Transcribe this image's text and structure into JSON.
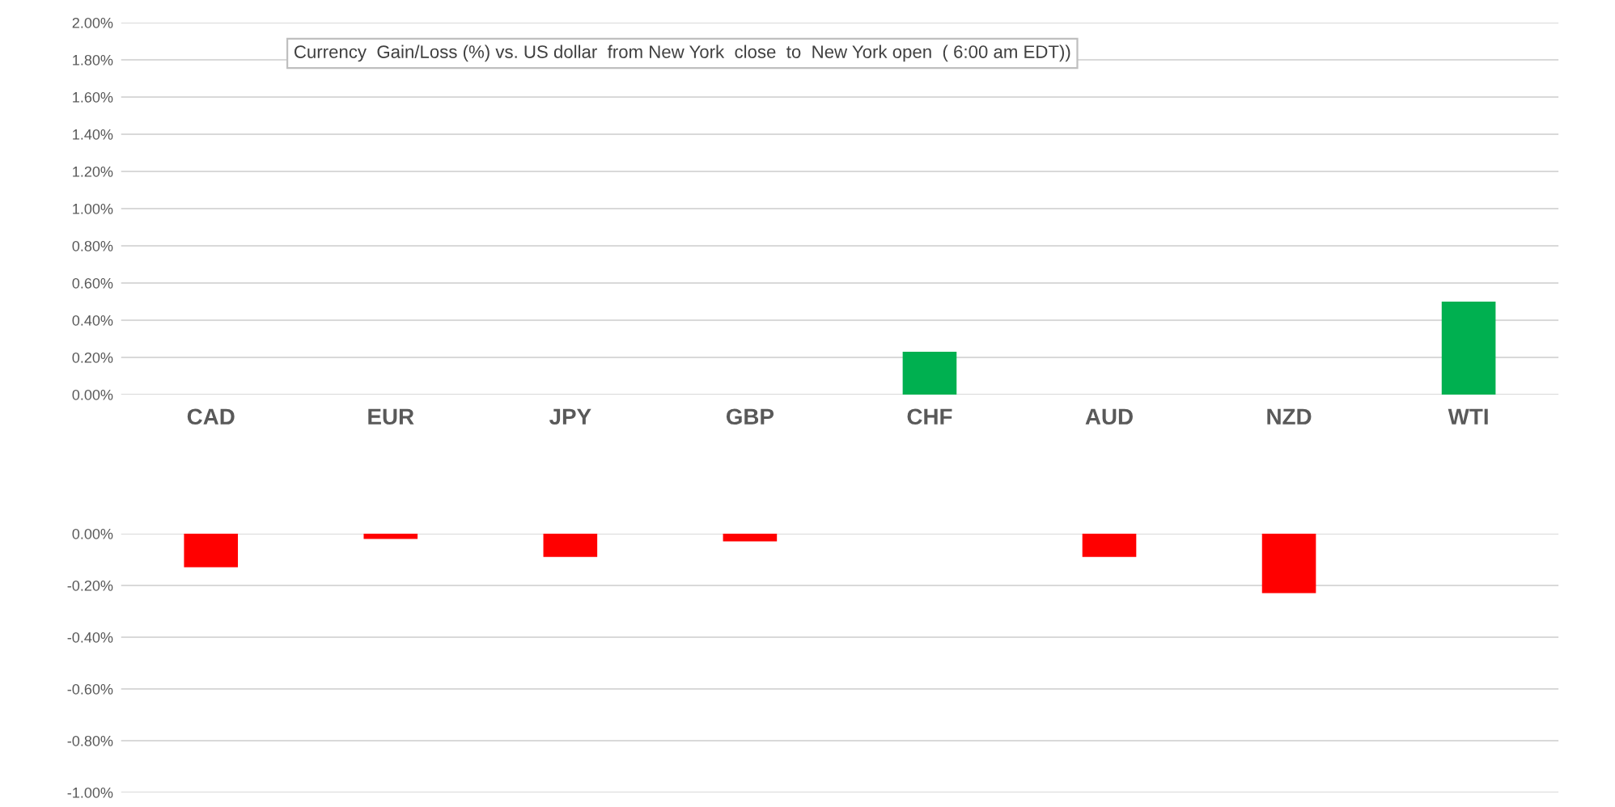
{
  "chart_data": [
    {
      "type": "bar",
      "categories": [
        "CAD",
        "EUR",
        "JPY",
        "GBP",
        "CHF",
        "AUD",
        "NZD",
        "WTI"
      ],
      "series": [
        {
          "color": "#00b050",
          "values": [
            null,
            null,
            null,
            null,
            0.23,
            null,
            null,
            0.5
          ]
        }
      ],
      "ylim": [
        0,
        2
      ],
      "yticks": [
        {
          "value": 0,
          "label": "0.00%"
        },
        {
          "value": 0.2,
          "label": "0.20%"
        },
        {
          "value": 0.4,
          "label": "0.40%"
        },
        {
          "value": 0.6,
          "label": "0.60%"
        },
        {
          "value": 0.8,
          "label": "0.80%"
        },
        {
          "value": 1.0,
          "label": "1.00%"
        },
        {
          "value": 1.2,
          "label": "1.20%"
        },
        {
          "value": 1.4,
          "label": "1.40%"
        },
        {
          "value": 1.6,
          "label": "1.60%"
        },
        {
          "value": 1.8,
          "label": "1.80%"
        },
        {
          "value": 2.0,
          "label": "2.00%"
        }
      ],
      "grid": "y",
      "annotations": [
        "Currency  Gain/Loss (%) vs. US dollar  from New York  close  to  New York open  ( 6:00 am EDT))"
      ]
    },
    {
      "type": "bar",
      "categories": [
        null,
        null,
        null,
        null,
        null,
        null,
        null,
        null
      ],
      "series": [
        {
          "color": "#ff0000",
          "values": [
            -0.13,
            -0.02,
            -0.09,
            -0.03,
            null,
            -0.09,
            -0.23,
            null
          ]
        }
      ],
      "ylim": [
        -1,
        0
      ],
      "yticks": [
        {
          "value": -1.0,
          "label": "-1.00%"
        },
        {
          "value": -0.8,
          "label": "-0.80%"
        },
        {
          "value": -0.6,
          "label": "-0.60%"
        },
        {
          "value": -0.4,
          "label": "-0.40%"
        },
        {
          "value": -0.2,
          "label": "-0.20%"
        },
        {
          "value": 0,
          "label": "0.00%"
        }
      ],
      "grid": "y"
    }
  ]
}
